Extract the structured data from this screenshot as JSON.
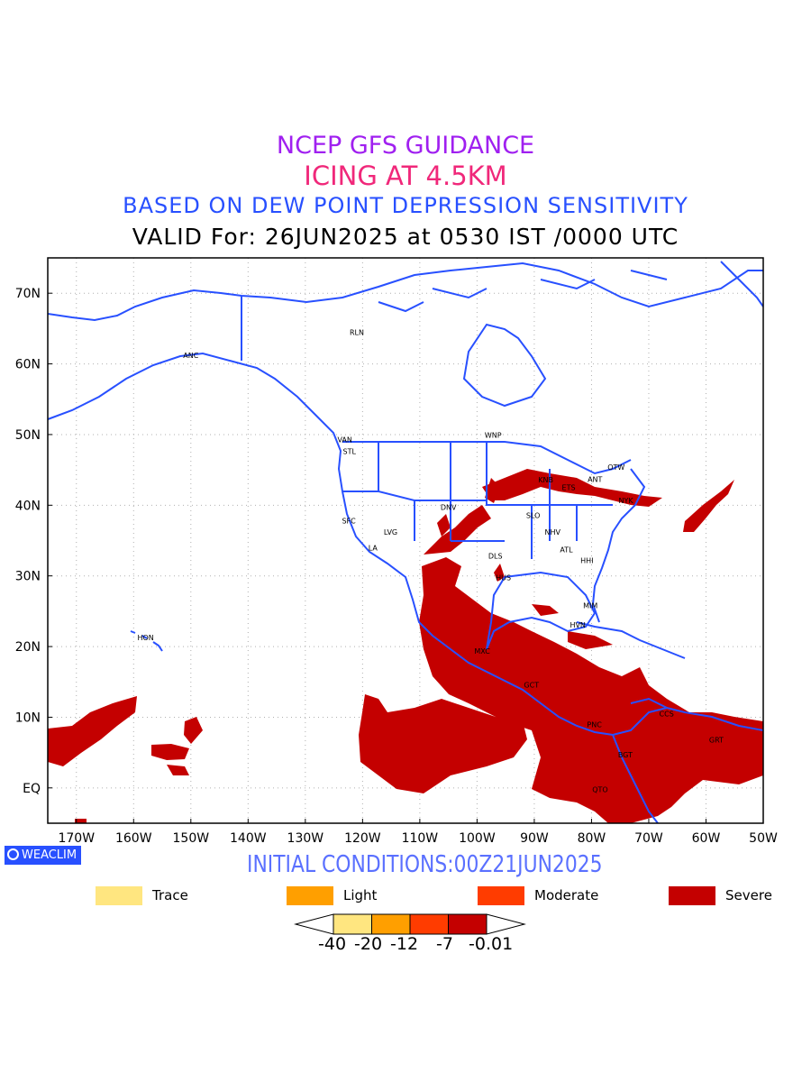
{
  "titles": {
    "line1": "NCEP GFS GUIDANCE",
    "line2": "ICING AT 4.5KM",
    "line3": "BASED ON DEW POINT DEPRESSION SENSITIVITY",
    "line4": "VALID For: 26JUN2025 at 0530 IST /0000 UTC"
  },
  "axes": {
    "lon_ticks": [
      "170W",
      "160W",
      "150W",
      "140W",
      "130W",
      "120W",
      "110W",
      "100W",
      "90W",
      "80W",
      "70W",
      "60W",
      "50W"
    ],
    "lat_ticks": [
      "70N",
      "60N",
      "50N",
      "40N",
      "30N",
      "20N",
      "10N",
      "EQ"
    ]
  },
  "stations": [
    {
      "name": "ANC",
      "lon": -150.0,
      "lat": 61.2
    },
    {
      "name": "RLN",
      "lon": -121.0,
      "lat": 64.5
    },
    {
      "name": "VAN",
      "lon": -123.1,
      "lat": 49.3
    },
    {
      "name": "STL",
      "lon": -122.3,
      "lat": 47.6
    },
    {
      "name": "WNP",
      "lon": -97.2,
      "lat": 49.9
    },
    {
      "name": "OTW",
      "lon": -75.7,
      "lat": 45.4
    },
    {
      "name": "ANT",
      "lon": -79.4,
      "lat": 43.7
    },
    {
      "name": "KNB",
      "lon": -88.0,
      "lat": 43.6
    },
    {
      "name": "ETS",
      "lon": -84.0,
      "lat": 42.5
    },
    {
      "name": "NYK",
      "lon": -74.0,
      "lat": 40.7
    },
    {
      "name": "DNV",
      "lon": -105.0,
      "lat": 39.7
    },
    {
      "name": "SFC",
      "lon": -122.4,
      "lat": 37.8
    },
    {
      "name": "SLO",
      "lon": -90.2,
      "lat": 38.6
    },
    {
      "name": "LVG",
      "lon": -115.1,
      "lat": 36.2
    },
    {
      "name": "NHV",
      "lon": -86.8,
      "lat": 36.2
    },
    {
      "name": "LA",
      "lon": -118.2,
      "lat": 34.0
    },
    {
      "name": "ATL",
      "lon": -84.4,
      "lat": 33.7
    },
    {
      "name": "DLS",
      "lon": -96.8,
      "lat": 32.8
    },
    {
      "name": "HHI",
      "lon": -80.8,
      "lat": 32.2
    },
    {
      "name": "HUS",
      "lon": -95.4,
      "lat": 29.8
    },
    {
      "name": "MIM",
      "lon": -80.2,
      "lat": 25.8
    },
    {
      "name": "HON",
      "lon": -157.9,
      "lat": 21.3
    },
    {
      "name": "HVN",
      "lon": -82.4,
      "lat": 23.1
    },
    {
      "name": "MXC",
      "lon": -99.1,
      "lat": 19.4
    },
    {
      "name": "CCS",
      "lon": -66.9,
      "lat": 10.5
    },
    {
      "name": "GCT",
      "lon": -90.5,
      "lat": 14.6
    },
    {
      "name": "PNC",
      "lon": -79.5,
      "lat": 9.0
    },
    {
      "name": "GRT",
      "lon": -58.2,
      "lat": 6.8
    },
    {
      "name": "BGT",
      "lon": -74.1,
      "lat": 4.7
    },
    {
      "name": "QTO",
      "lon": -78.5,
      "lat": -0.2
    }
  ],
  "badge": "WEACLIM",
  "initial_conditions": "INITIAL CONDITIONS:00Z21JUN2025",
  "legend": [
    {
      "label": "Trace",
      "color": "#ffe680"
    },
    {
      "label": "Light",
      "color": "#ff9f00"
    },
    {
      "label": "Moderate",
      "color": "#ff3c00"
    },
    {
      "label": "Severe",
      "color": "#c40000"
    }
  ],
  "colorbar": {
    "colors": [
      "#ffe680",
      "#ff9f00",
      "#ff3c00",
      "#c40000"
    ],
    "labels": [
      "-40",
      "-20",
      "-12",
      "-7",
      "-0.01"
    ]
  },
  "colors": {
    "coast": "#2850ff",
    "icing_severe": "#c40000",
    "grid": "#b0b0b0"
  }
}
